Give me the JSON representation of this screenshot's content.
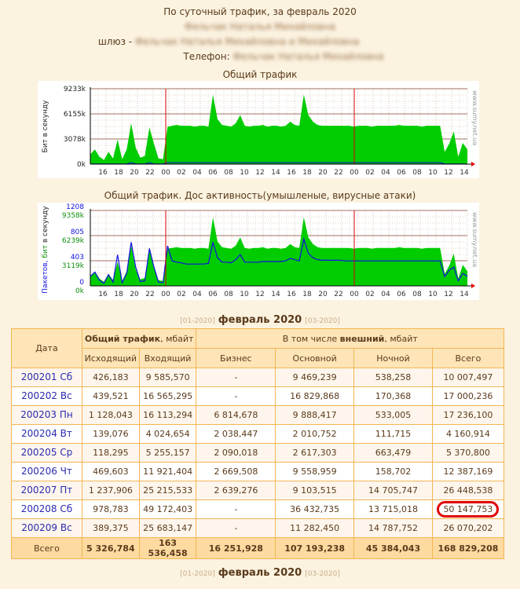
{
  "header": {
    "subtitle": "По суточный трафик, за февраль 2020",
    "name": "Фельчак Наталья Михайловна",
    "gateway_label": "шлюз -",
    "gateway_value": "Фельчак Наталья Михайловна и Михайловна",
    "phone_label": "Телефон:",
    "phone_value": "Фельчак Наталья Михайловна"
  },
  "chart_data": [
    {
      "type": "area",
      "title": "Общий трафик",
      "ylabel": "Бит в секунду",
      "watermark": "www.sumy.net.ua",
      "yticks": [
        "0k",
        "3078k",
        "6155k",
        "9233k"
      ],
      "ylim": [
        0,
        9233
      ],
      "xticks": [
        "16",
        "18",
        "20",
        "22",
        "00",
        "02",
        "04",
        "06",
        "08",
        "10",
        "12",
        "14",
        "16",
        "18",
        "20",
        "22",
        "00",
        "02",
        "04",
        "06",
        "08",
        "10",
        "12",
        "14"
      ],
      "x_start_hour": 14.4,
      "day_markers": [
        24,
        48
      ],
      "color": "#00cc00",
      "values": [
        1200,
        1800,
        900,
        500,
        1500,
        700,
        3000,
        600,
        1800,
        5000,
        2000,
        800,
        1000,
        4500,
        2500,
        700,
        600,
        4600,
        4700,
        4800,
        4700,
        4700,
        4700,
        4600,
        4700,
        4700,
        4600,
        8500,
        5500,
        4800,
        4700,
        4600,
        5000,
        6000,
        4700,
        4600,
        4700,
        4700,
        4800,
        4600,
        4700,
        4700,
        4600,
        4700,
        5200,
        4800,
        4700,
        8500,
        6000,
        5200,
        4800,
        4700,
        4700,
        4700,
        4700,
        4700,
        4700,
        4700,
        4600,
        4700,
        4700,
        4700,
        4600,
        4700,
        4700,
        4700,
        4700,
        4700,
        4800,
        4700,
        4700,
        4700,
        4700,
        4600,
        4700,
        4700,
        4700,
        4700,
        1500,
        2500,
        4000,
        900,
        2600,
        1800
      ]
    },
    {
      "type": "area",
      "title": "Общий трафик. Дос активность(умышленые, вирусные атаки)",
      "ylabel_parts": [
        "Пакетов,",
        "бит",
        "в секунду"
      ],
      "watermark": "www.sumy.net.ua",
      "yticks_packets": [
        "0",
        "403",
        "805",
        "1208"
      ],
      "yticks_bits": [
        "0k",
        "3119k",
        "6239k",
        "9358k"
      ],
      "ylim": [
        0,
        9358
      ],
      "x_start_hour": 14.4,
      "day_markers": [
        24,
        48
      ],
      "values": [
        1200,
        1800,
        900,
        500,
        1500,
        700,
        3000,
        600,
        1800,
        5000,
        2000,
        800,
        1000,
        4500,
        2500,
        700,
        600,
        4600,
        4700,
        4800,
        4700,
        4700,
        4700,
        4600,
        4700,
        4700,
        4600,
        8500,
        5500,
        4800,
        4700,
        4600,
        5000,
        6000,
        4700,
        4600,
        4700,
        4700,
        4800,
        4600,
        4700,
        4700,
        4600,
        4700,
        5200,
        4800,
        4700,
        8500,
        6000,
        5200,
        4800,
        4700,
        4700,
        4700,
        4700,
        4700,
        4700,
        4700,
        4600,
        4700,
        4700,
        4700,
        4600,
        4700,
        4700,
        4700,
        4700,
        4700,
        4800,
        4700,
        4700,
        4700,
        4700,
        4600,
        4700,
        4700,
        4700,
        4700,
        1500,
        2500,
        4000,
        900,
        2600,
        1800
      ],
      "packets": [
        150,
        220,
        90,
        40,
        180,
        60,
        500,
        50,
        200,
        700,
        300,
        70,
        80,
        600,
        300,
        60,
        50,
        640,
        400,
        380,
        370,
        350,
        350,
        350,
        350,
        350,
        360,
        700,
        450,
        380,
        380,
        370,
        420,
        500,
        380,
        380,
        380,
        380,
        390,
        390,
        390,
        390,
        390,
        400,
        440,
        420,
        400,
        750,
        520,
        450,
        420,
        410,
        410,
        410,
        410,
        410,
        400,
        400,
        400,
        400,
        400,
        400,
        400,
        400,
        400,
        400,
        400,
        400,
        400,
        400,
        400,
        400,
        400,
        400,
        400,
        400,
        400,
        400,
        150,
        250,
        300,
        80,
        200,
        150
      ]
    }
  ],
  "nav": {
    "prev": "[01-2020]",
    "current": "февраль 2020",
    "next": "[03-2020]"
  },
  "table": {
    "h_date": "Дата",
    "h_total_bold": "Общий трафик",
    "h_total_unit": ", мбайт",
    "h_ext_pre": "В том числе ",
    "h_ext_bold": "внешний",
    "h_ext_unit": ", мбайт",
    "cols": [
      "Исходящий",
      "Входящий",
      "Бизнес",
      "Основной",
      "Ночной",
      "Всего"
    ],
    "rows": [
      [
        "200201 Сб",
        "426,183",
        "9 585,570",
        "-",
        "9 469,239",
        "538,258",
        "10 007,497"
      ],
      [
        "200202 Вс",
        "439,521",
        "16 565,295",
        "-",
        "16 829,868",
        "170,368",
        "17 000,236"
      ],
      [
        "200203 Пн",
        "1 128,043",
        "16 113,294",
        "6 814,678",
        "9 888,417",
        "533,005",
        "17 236,100"
      ],
      [
        "200204 Вт",
        "139,076",
        "4 024,654",
        "2 038,447",
        "2 010,752",
        "111,715",
        "4 160,914"
      ],
      [
        "200205 Ср",
        "118,295",
        "5 255,157",
        "2 090,018",
        "2 617,303",
        "663,479",
        "5 370,800"
      ],
      [
        "200206 Чт",
        "469,603",
        "11 921,404",
        "2 669,508",
        "9 558,959",
        "158,702",
        "12 387,169"
      ],
      [
        "200207 Пт",
        "1 237,906",
        "25 215,533",
        "2 639,276",
        "9 103,515",
        "14 705,747",
        "26 448,538"
      ],
      [
        "200208 Сб",
        "978,783",
        "49 172,403",
        "-",
        "36 432,735",
        "13 715,018",
        "50 147,753"
      ],
      [
        "200209 Вс",
        "389,375",
        "25 683,147",
        "-",
        "11 282,450",
        "14 787,752",
        "26 070,202"
      ]
    ],
    "total": [
      "Всего",
      "5 326,784",
      "163 536,458",
      "16 251,928",
      "107 193,238",
      "45 384,043",
      "168 829,208"
    ]
  }
}
